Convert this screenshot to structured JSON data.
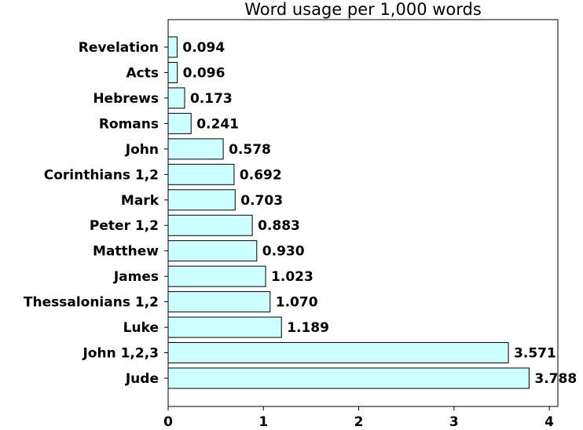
{
  "chart_data": {
    "type": "bar",
    "orientation": "horizontal",
    "title": "Word usage per 1,000 words",
    "xlabel": "",
    "ylabel": "",
    "categories": [
      "Revelation",
      "Acts",
      "Hebrews",
      "Romans",
      "John",
      "Corinthians 1,2",
      "Mark",
      "Peter 1,2",
      "Matthew",
      "James",
      "Thessalonians 1,2",
      "Luke",
      "John 1,2,3",
      "Jude"
    ],
    "values": [
      0.094,
      0.096,
      0.173,
      0.241,
      0.578,
      0.692,
      0.703,
      0.883,
      0.93,
      1.023,
      1.07,
      1.189,
      3.571,
      3.788
    ],
    "data_labels": [
      "0.094",
      "0.096",
      "0.173",
      "0.241",
      "0.578",
      "0.692",
      "0.703",
      "0.883",
      "0.930",
      "1.023",
      "1.070",
      "1.189",
      "3.571",
      "3.788"
    ],
    "xticks": [
      0,
      1,
      2,
      3,
      4
    ],
    "xtick_labels": [
      "0",
      "1",
      "2",
      "3",
      "4"
    ],
    "xlim": [
      0,
      4.09
    ],
    "grid": false,
    "bar_color": "#ccffff",
    "edge_color": "#000000"
  }
}
